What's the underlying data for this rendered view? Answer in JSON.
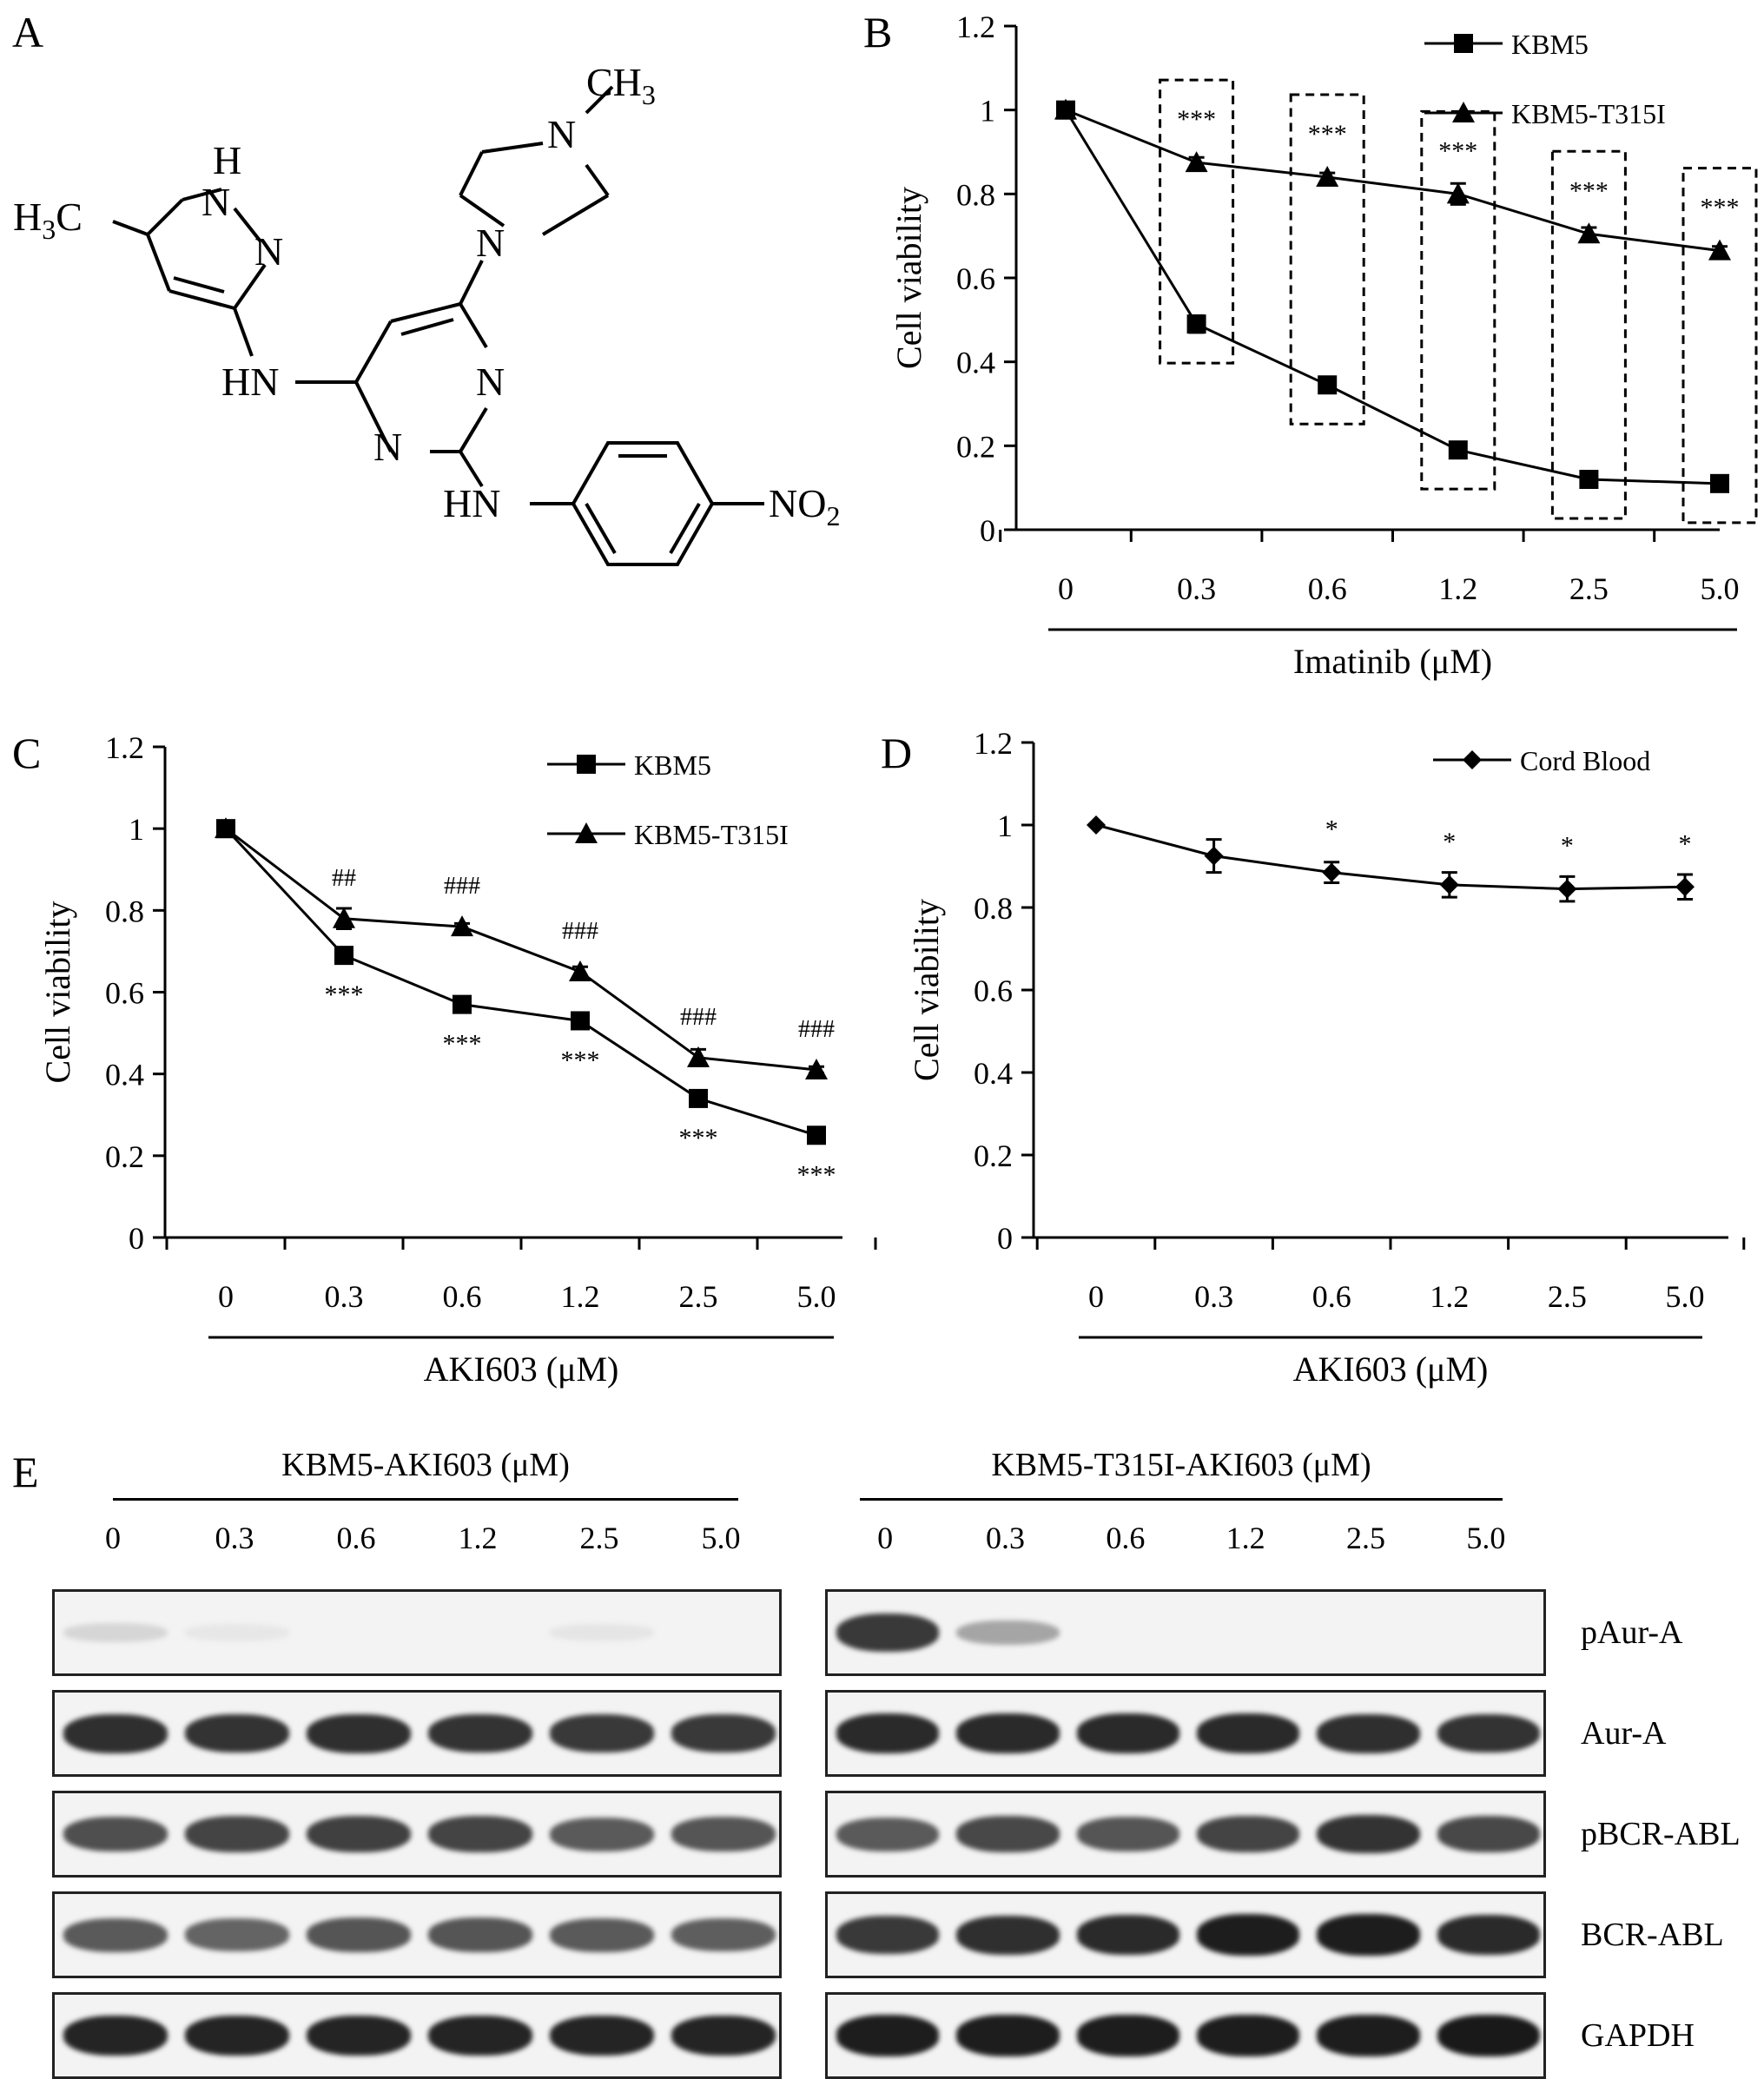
{
  "panels": {
    "A": {
      "letter": "A"
    },
    "B": {
      "letter": "B"
    },
    "C": {
      "letter": "C"
    },
    "D": {
      "letter": "D"
    },
    "E": {
      "letter": "E"
    }
  },
  "molecule": {
    "labels": {
      "h3c": "H3C",
      "nh_top_h": "H",
      "n_pyrazole_1": "N",
      "n_pyrazole_2": "N",
      "hn_left": "HN",
      "n_pip_bottom": "N",
      "n_pip_top": "N",
      "ch3": "CH3",
      "n_pyr_right": "N",
      "n_pyr_bottom": "N",
      "hn_bottom": "HN",
      "no2": "NO2"
    }
  },
  "chart_data": [
    {
      "panel": "B",
      "type": "line",
      "categories": [
        "0",
        "0.3",
        "0.6",
        "1.2",
        "2.5",
        "5.0"
      ],
      "series": [
        {
          "name": "KBM5",
          "marker": "square",
          "values": [
            1.0,
            0.49,
            0.345,
            0.19,
            0.12,
            0.11
          ],
          "errors": [
            0,
            0.02,
            0.01,
            0.01,
            0.008,
            0.008
          ]
        },
        {
          "name": "KBM5-T315I",
          "marker": "triangle",
          "values": [
            1.0,
            0.875,
            0.84,
            0.8,
            0.705,
            0.665
          ],
          "errors": [
            0,
            0.012,
            0.01,
            0.025,
            0.015,
            0.01
          ]
        }
      ],
      "annotations": [
        "",
        "***",
        "***",
        "***",
        "***",
        "***"
      ],
      "annotation_box_group": "dashed",
      "xlabel": "Imatinib (μM)",
      "ylabel": "Cell viability",
      "ylim": [
        0,
        1.2
      ],
      "yticks": [
        "0",
        "0.2",
        "0.4",
        "0.6",
        "0.8",
        "1",
        "1.2"
      ],
      "legend_position": "top-right"
    },
    {
      "panel": "C",
      "type": "line",
      "categories": [
        "0",
        "0.3",
        "0.6",
        "1.2",
        "2.5",
        "5.0"
      ],
      "series": [
        {
          "name": "KBM5",
          "marker": "square",
          "values": [
            1.0,
            0.69,
            0.57,
            0.53,
            0.34,
            0.25
          ],
          "errors": [
            0,
            0.012,
            0.018,
            0.008,
            0.008,
            0.008
          ]
        },
        {
          "name": "KBM5-T315I",
          "marker": "triangle",
          "values": [
            1.0,
            0.78,
            0.76,
            0.65,
            0.44,
            0.41
          ],
          "errors": [
            0,
            0.025,
            0.008,
            0.012,
            0.02,
            0.008
          ]
        }
      ],
      "annotations_top": [
        "",
        "##",
        "###",
        "###",
        "###",
        "###"
      ],
      "annotations_bottom": [
        "",
        "***",
        "***",
        "***",
        "***",
        "***"
      ],
      "xlabel": "AKI603 (μM)",
      "ylabel": "Cell viability",
      "ylim": [
        0,
        1.2
      ],
      "yticks": [
        "0",
        "0.2",
        "0.4",
        "0.6",
        "0.8",
        "1",
        "1.2"
      ],
      "legend_position": "top-right"
    },
    {
      "panel": "D",
      "type": "line",
      "categories": [
        "0",
        "0.3",
        "0.6",
        "1.2",
        "2.5",
        "5.0"
      ],
      "series": [
        {
          "name": "Cord Blood",
          "marker": "diamond",
          "values": [
            1.0,
            0.925,
            0.885,
            0.855,
            0.845,
            0.85
          ],
          "errors": [
            0,
            0.04,
            0.025,
            0.03,
            0.03,
            0.03
          ]
        }
      ],
      "annotations": [
        "",
        "",
        "*",
        "*",
        "*",
        "*"
      ],
      "xlabel": "AKI603 (μM)",
      "ylabel": "Cell viability",
      "ylim": [
        0,
        1.2
      ],
      "yticks": [
        "0",
        "0.2",
        "0.4",
        "0.6",
        "0.8",
        "1",
        "1.2"
      ],
      "legend_position": "top-right"
    }
  ],
  "blot": {
    "left_header": "KBM5-AKI603 (μM)",
    "right_header": "KBM5-T315I-AKI603 (μM)",
    "lanes": [
      "0",
      "0.3",
      "0.6",
      "1.2",
      "2.5",
      "5.0"
    ],
    "rows": [
      "pAur-A",
      "Aur-A",
      "pBCR-ABL",
      "BCR-ABL",
      "GAPDH"
    ],
    "left_intensity": [
      [
        0.12,
        0.04,
        0.0,
        0.0,
        0.05,
        0.0
      ],
      [
        0.9,
        0.88,
        0.9,
        0.88,
        0.85,
        0.85
      ],
      [
        0.75,
        0.8,
        0.82,
        0.8,
        0.7,
        0.72
      ],
      [
        0.7,
        0.65,
        0.72,
        0.72,
        0.7,
        0.68
      ],
      [
        0.95,
        0.95,
        0.95,
        0.95,
        0.95,
        0.95
      ]
    ],
    "right_intensity": [
      [
        0.85,
        0.35,
        0.0,
        0.0,
        0.0,
        0.0
      ],
      [
        0.92,
        0.92,
        0.92,
        0.92,
        0.9,
        0.88
      ],
      [
        0.7,
        0.78,
        0.72,
        0.8,
        0.88,
        0.78
      ],
      [
        0.85,
        0.9,
        0.92,
        0.98,
        0.98,
        0.92
      ],
      [
        0.98,
        0.98,
        0.98,
        0.98,
        0.98,
        1.0
      ]
    ]
  }
}
